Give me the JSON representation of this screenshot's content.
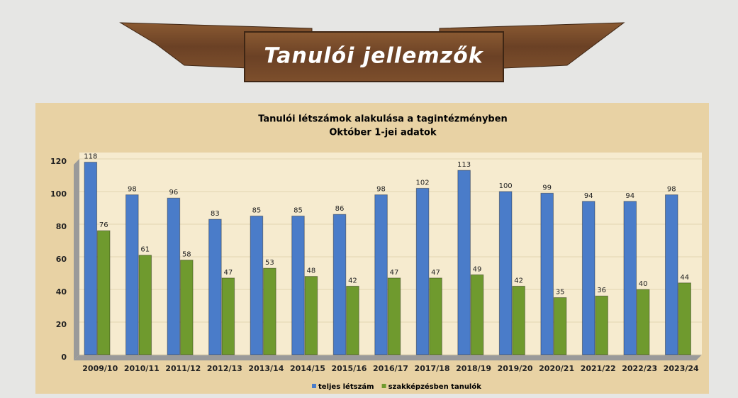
{
  "page_title": "Tanulói jellemzők",
  "chart_data": {
    "type": "bar",
    "title": "Tanulói létszámok alakulása a tagintézményben",
    "subtitle": "Október 1-jei adatok",
    "categories": [
      "2009/10",
      "2010/11",
      "2011/12",
      "2012/13",
      "2013/14",
      "2014/15",
      "2015/16",
      "2016/17",
      "2017/18",
      "2018/19",
      "2019/20",
      "2020/21",
      "2021/22",
      "2022/23",
      "2023/24"
    ],
    "series": [
      {
        "name": "teljes létszám",
        "color": "#4a7cc9",
        "values": [
          118,
          98,
          96,
          83,
          85,
          85,
          86,
          98,
          102,
          113,
          100,
          99,
          94,
          94,
          98
        ]
      },
      {
        "name": "szakképzésben tanulók",
        "color": "#6f9a2e",
        "values": [
          76,
          61,
          58,
          47,
          53,
          48,
          42,
          47,
          47,
          49,
          42,
          35,
          36,
          40,
          44
        ]
      }
    ],
    "ylim": [
      0,
      120
    ],
    "yticks": [
      0,
      20,
      40,
      60,
      80,
      100,
      120
    ],
    "grid": true,
    "legend": "bottom"
  }
}
